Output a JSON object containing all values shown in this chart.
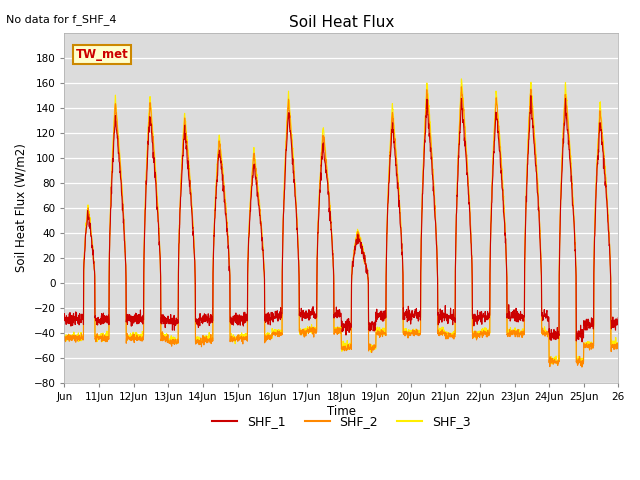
{
  "title": "Soil Heat Flux",
  "xlabel": "Time",
  "ylabel": "Soil Heat Flux (W/m2)",
  "note": "No data for f_SHF_4",
  "tw_met_label": "TW_met",
  "ylim": [
    -80,
    200
  ],
  "yticks": [
    -80,
    -60,
    -40,
    -20,
    0,
    20,
    40,
    60,
    80,
    100,
    120,
    140,
    160,
    180
  ],
  "colors": {
    "SHF_1": "#cc0000",
    "SHF_2": "#ff8800",
    "SHF_3": "#ffee00"
  },
  "background_color": "#dcdcdc",
  "x_start_day": 10,
  "x_end_day": 26,
  "x_tick_days": [
    10,
    11,
    12,
    13,
    14,
    15,
    16,
    17,
    18,
    19,
    20,
    21,
    22,
    23,
    24,
    25,
    26
  ],
  "x_tick_labels": [
    "Jun",
    "11Jun",
    "12Jun",
    "13Jun",
    "14Jun",
    "15Jun",
    "16Jun",
    "17Jun",
    "18Jun",
    "19Jun",
    "20Jun",
    "21Jun",
    "22Jun",
    "23Jun",
    "24Jun",
    "25Jun",
    "26"
  ]
}
